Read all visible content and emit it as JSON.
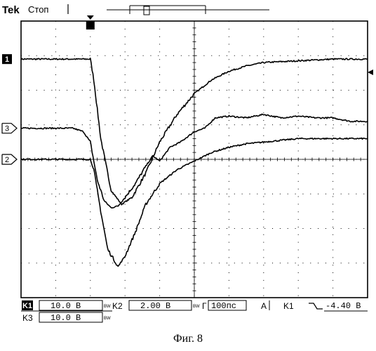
{
  "header": {
    "brand": "Tek",
    "state": "Стоп",
    "trigger_marker": "T"
  },
  "channel_markers": {
    "ch1": "1",
    "ch2": "2",
    "ch3": "3"
  },
  "status_bar": {
    "row1": {
      "ch1_label": "K1",
      "ch1_scale": "10.0 В",
      "ch2_label": "K2",
      "ch2_scale": "2.00 В",
      "timebase_label": "Г",
      "timebase": "100пс",
      "trig_mode": "A",
      "trig_source": "K1",
      "trig_level": "-4.40 В"
    },
    "row2": {
      "ch3_label": "K3",
      "ch3_scale": "10.0 В"
    },
    "bw_mark": "BW"
  },
  "caption": "Фиг. 8",
  "chart_data": {
    "type": "line",
    "grid": true,
    "x_divisions": 10,
    "y_divisions": 8,
    "xlim": [
      0,
      10
    ],
    "ylim": [
      -4,
      4
    ],
    "trigger_x": 2,
    "series": [
      {
        "channel": "1",
        "color": "#000000",
        "x": [
          0,
          2.0,
          2.1,
          2.3,
          2.6,
          2.9,
          3.2,
          3.6,
          4.0,
          4.5,
          5.0,
          5.5,
          6.0,
          6.5,
          7.0,
          8.0,
          9.0,
          10.0
        ],
        "y": [
          2.9,
          2.9,
          2.3,
          0.6,
          -0.9,
          -1.3,
          -1.1,
          -0.4,
          0.5,
          1.3,
          1.9,
          2.3,
          2.55,
          2.7,
          2.8,
          2.85,
          2.9,
          2.9
        ]
      },
      {
        "channel": "3",
        "color": "#000000",
        "x": [
          0,
          1.5,
          1.8,
          2.0,
          2.2,
          2.4,
          2.6,
          2.8,
          3.0,
          3.3,
          3.6,
          3.8,
          4.0,
          4.3,
          4.6,
          5.0,
          5.3,
          5.6,
          6.0,
          6.5,
          7.0,
          7.5,
          8.0,
          8.5,
          9.0,
          9.5,
          10.0
        ],
        "y": [
          0.9,
          0.9,
          0.8,
          0.5,
          -0.6,
          -1.2,
          -1.4,
          -1.35,
          -1.1,
          -0.7,
          -0.2,
          0.1,
          -0.05,
          0.35,
          0.5,
          0.8,
          0.9,
          1.2,
          1.25,
          1.2,
          1.3,
          1.2,
          1.25,
          1.2,
          1.2,
          1.1,
          1.1
        ]
      },
      {
        "channel": "2",
        "color": "#000000",
        "x": [
          0,
          2.0,
          2.1,
          2.3,
          2.5,
          2.8,
          3.0,
          3.3,
          3.6,
          4.0,
          4.5,
          5.0,
          5.5,
          6.0,
          6.5,
          7.0,
          7.5,
          8.0,
          9.0,
          10.0
        ],
        "y": [
          0,
          0,
          -0.3,
          -1.5,
          -2.6,
          -3.1,
          -2.8,
          -2.1,
          -1.3,
          -0.7,
          -0.3,
          -0.05,
          0.2,
          0.35,
          0.45,
          0.5,
          0.55,
          0.6,
          0.6,
          0.6
        ]
      }
    ]
  }
}
